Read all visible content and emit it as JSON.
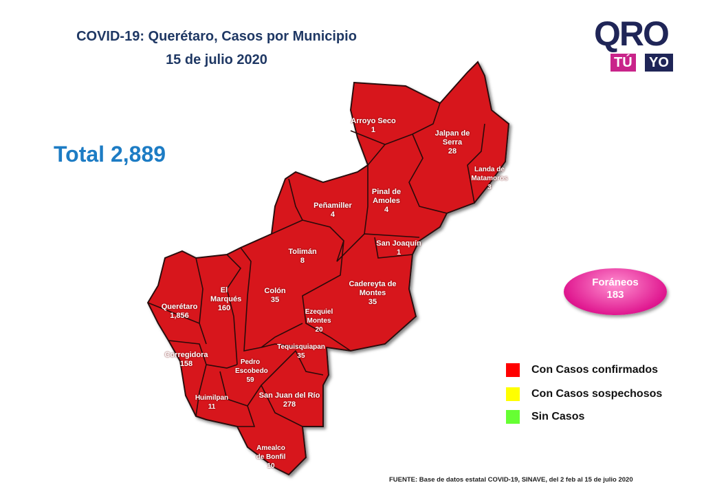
{
  "header": {
    "title_line1": "COVID-19: Querétaro, Casos por Municipio",
    "title_line2": "15 de julio 2020"
  },
  "total": "Total 2,889",
  "logo": {
    "main": "QRO",
    "tu": "TÚ",
    "yo": "YO"
  },
  "municipios": [
    {
      "name": "Arroyo Seco",
      "cases": "1"
    },
    {
      "name": "Jalpan de Serra",
      "cases": "28"
    },
    {
      "name": "Landa de Matamoros",
      "cases": "3"
    },
    {
      "name": "Pinal de Amoles",
      "cases": "4"
    },
    {
      "name": "Peñamiller",
      "cases": "4"
    },
    {
      "name": "San Joaquín",
      "cases": "1"
    },
    {
      "name": "Tolimán",
      "cases": "8"
    },
    {
      "name": "Cadereyta de Montes",
      "cases": "35"
    },
    {
      "name": "El Marqués",
      "cases": "160"
    },
    {
      "name": "Colón",
      "cases": "35"
    },
    {
      "name": "Querétaro",
      "cases": "1,856"
    },
    {
      "name": "Ezequiel Montes",
      "cases": "20"
    },
    {
      "name": "Tequisquiapan",
      "cases": "35"
    },
    {
      "name": "Corregidora",
      "cases": "158"
    },
    {
      "name": "Pedro Escobedo",
      "cases": "59"
    },
    {
      "name": "Huimilpan",
      "cases": "11"
    },
    {
      "name": "San Juan del Río",
      "cases": "278"
    },
    {
      "name": "Amealco de Bonfil",
      "cases": "10"
    }
  ],
  "foraneos": {
    "label": "Foráneos",
    "value": "183"
  },
  "legend": [
    {
      "label": "Con Casos confirmados",
      "color": "#ff0000"
    },
    {
      "label": "Con Casos sospechosos",
      "color": "#ffff00"
    },
    {
      "label": "Sin Casos",
      "color": "#66ff33"
    }
  ],
  "map_fill": "#d7141e",
  "footer": "FUENTE: Base de datos estatal COVID-19, SINAVE, del 2 feb al 15 de julio 2020"
}
